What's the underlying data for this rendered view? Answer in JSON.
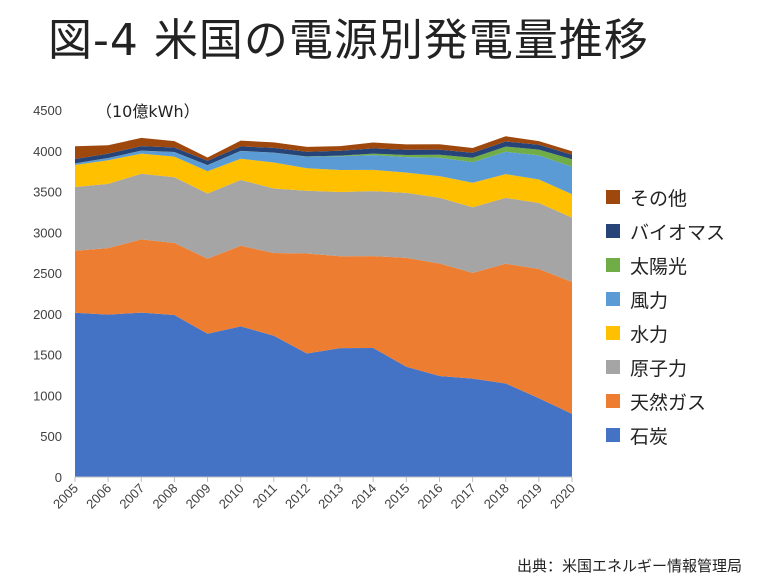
{
  "title": "図-4 米国の電源別発電量推移",
  "unit_label": "（10億kWh）",
  "source": "出典：米国エネルギー情報管理局",
  "chart_data": {
    "type": "area",
    "stacked": true,
    "x": [
      2005,
      2006,
      2007,
      2008,
      2009,
      2010,
      2011,
      2012,
      2013,
      2014,
      2015,
      2016,
      2017,
      2018,
      2019,
      2020
    ],
    "ylim": [
      0,
      4500
    ],
    "yticks": [
      0,
      500,
      1000,
      1500,
      2000,
      2500,
      3000,
      3500,
      4000,
      4500
    ],
    "grid": false,
    "legend_position": "right",
    "series": [
      {
        "name": "石炭",
        "color": "#4472c4",
        "values": [
          2013,
          1991,
          2016,
          1986,
          1756,
          1847,
          1733,
          1514,
          1581,
          1582,
          1352,
          1239,
          1206,
          1146,
          965,
          774
        ]
      },
      {
        "name": "天然ガス",
        "color": "#ed7d31",
        "values": [
          761,
          816,
          897,
          883,
          921,
          988,
          1014,
          1226,
          1125,
          1127,
          1334,
          1379,
          1296,
          1469,
          1586,
          1617
        ]
      },
      {
        "name": "原子力",
        "color": "#a5a5a5",
        "values": [
          782,
          787,
          806,
          806,
          799,
          807,
          790,
          769,
          789,
          797,
          797,
          805,
          805,
          807,
          809,
          790
        ]
      },
      {
        "name": "水力",
        "color": "#ffc000",
        "values": [
          270,
          289,
          247,
          254,
          273,
          260,
          319,
          276,
          269,
          259,
          249,
          266,
          300,
          292,
          288,
          285
        ]
      },
      {
        "name": "風力",
        "color": "#5b9bd5",
        "values": [
          18,
          27,
          35,
          55,
          74,
          95,
          120,
          141,
          168,
          182,
          191,
          227,
          254,
          273,
          295,
          338
        ]
      },
      {
        "name": "太陽光",
        "color": "#70ad47",
        "values": [
          1,
          1,
          1,
          1,
          1,
          1,
          2,
          4,
          9,
          18,
          25,
          36,
          53,
          64,
          72,
          91
        ]
      },
      {
        "name": "バイオマス",
        "color": "#264478",
        "values": [
          54,
          55,
          55,
          55,
          54,
          56,
          57,
          57,
          60,
          64,
          64,
          63,
          63,
          63,
          58,
          56
        ]
      },
      {
        "name": "その他",
        "color": "#9e480e",
        "values": [
          156,
          103,
          101,
          79,
          40,
          71,
          68,
          60,
          56,
          73,
          66,
          65,
          57,
          64,
          46,
          42
        ]
      }
    ]
  }
}
